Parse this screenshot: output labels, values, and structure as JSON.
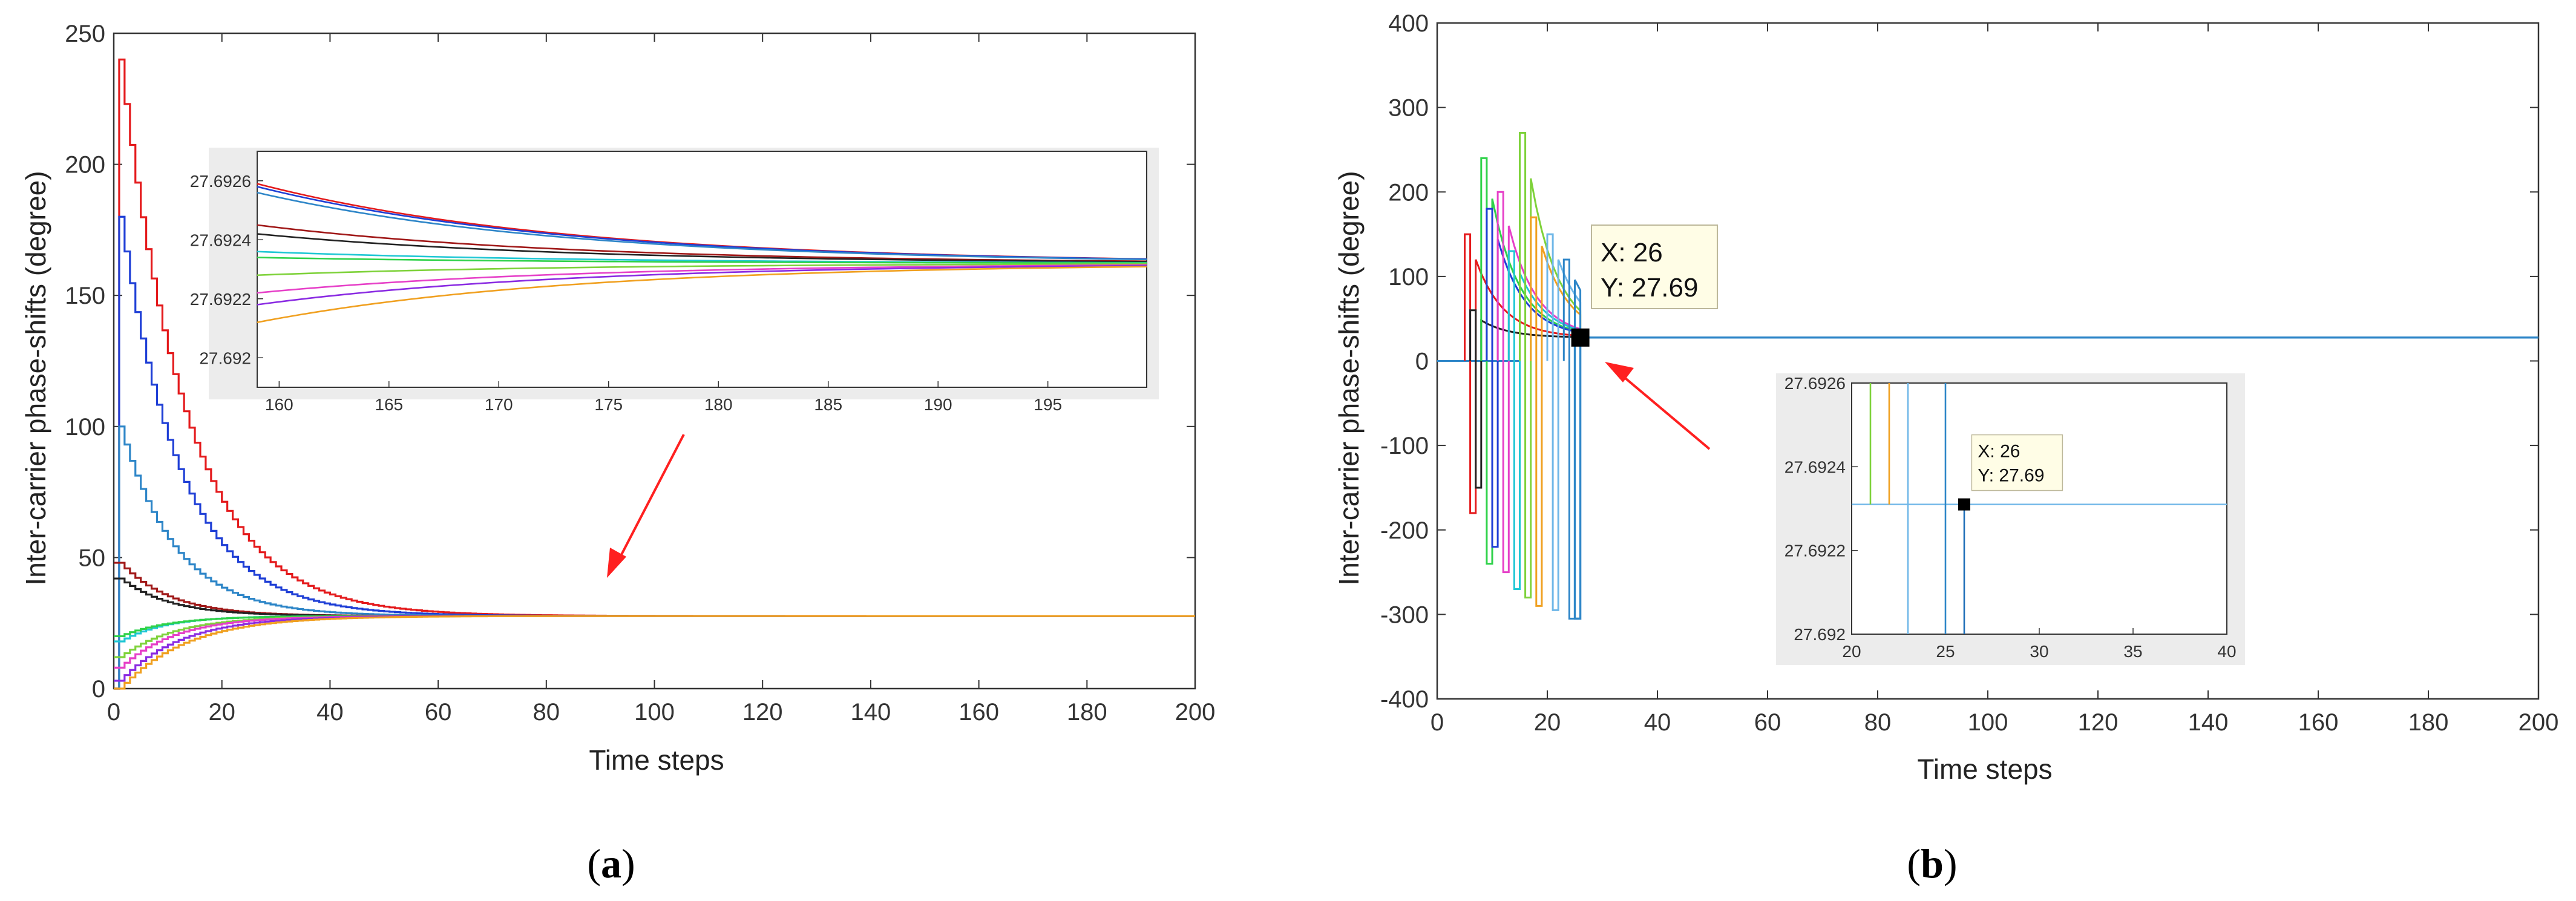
{
  "chart_data": [
    {
      "panel": "a",
      "type": "line",
      "xlabel": "Time steps",
      "ylabel": "Inter-carrier phase-shifts (degree)",
      "xlim": [
        0,
        200
      ],
      "ylim": [
        0,
        250
      ],
      "xticks": [
        0,
        20,
        40,
        60,
        80,
        100,
        120,
        140,
        160,
        180,
        200
      ],
      "yticks": [
        0,
        50,
        100,
        150,
        200,
        250
      ],
      "converged_value": 27.69,
      "series": [
        {
          "name": "red",
          "color": "#e41a1c",
          "start": 240,
          "tau": 12
        },
        {
          "name": "blue",
          "color": "#1f3fd6",
          "start": 180,
          "tau": 11
        },
        {
          "name": "steel-blue",
          "color": "#2e86c8",
          "start": 100,
          "tau": 10
        },
        {
          "name": "dark-red",
          "color": "#a01818",
          "start": 48,
          "tau": 9
        },
        {
          "name": "black",
          "color": "#222222",
          "start": 42,
          "tau": 9
        },
        {
          "name": "cyan",
          "color": "#1fc7d4",
          "start": 18,
          "tau": 8
        },
        {
          "name": "green",
          "color": "#2fd24a",
          "start": 20,
          "tau": 9
        },
        {
          "name": "lime",
          "color": "#7ed23a",
          "start": 12,
          "tau": 10
        },
        {
          "name": "magenta",
          "color": "#e640c8",
          "start": 8,
          "tau": 10
        },
        {
          "name": "purple",
          "color": "#8a2be2",
          "start": 3,
          "tau": 11
        },
        {
          "name": "orange",
          "color": "#f0a020",
          "start": 0,
          "tau": 12
        }
      ],
      "inset": {
        "xlim": [
          159,
          199.5
        ],
        "ylim": [
          27.6919,
          27.6927
        ],
        "xticks": [
          160,
          165,
          170,
          175,
          180,
          185,
          190,
          195
        ],
        "yticks": [
          27.692,
          27.6922,
          27.6924,
          27.6926
        ],
        "ytick_labels": [
          "27.692",
          "27.6922",
          "27.6924",
          "27.6926"
        ],
        "start_values": [
          27.69259,
          27.69258,
          27.69256,
          27.69245,
          27.69242,
          27.69236,
          27.69234,
          27.69228,
          27.69222,
          27.69218,
          27.69212
        ]
      }
    },
    {
      "panel": "b",
      "type": "line",
      "xlabel": "Time steps",
      "ylabel": "Inter-carrier phase-shifts (degree)",
      "xlim": [
        0,
        200
      ],
      "ylim": [
        -400,
        400
      ],
      "xticks": [
        0,
        20,
        40,
        60,
        80,
        100,
        120,
        140,
        160,
        180,
        200
      ],
      "yticks": [
        -400,
        -300,
        -200,
        -100,
        0,
        100,
        200,
        300,
        400
      ],
      "converged_value": 27.69,
      "series": [
        {
          "name": "red",
          "color": "#e41a1c",
          "start": 5,
          "amp": 150,
          "low": -180
        },
        {
          "name": "black",
          "color": "#222222",
          "start": 6,
          "amp": 60,
          "low": -150
        },
        {
          "name": "green",
          "color": "#2fd24a",
          "start": 8,
          "amp": 240,
          "low": -240
        },
        {
          "name": "blue",
          "color": "#1f3fd6",
          "start": 9,
          "amp": 180,
          "low": -220
        },
        {
          "name": "magenta",
          "color": "#e640c8",
          "start": 11,
          "amp": 200,
          "low": -250
        },
        {
          "name": "cyan",
          "color": "#1fc7d4",
          "start": 13,
          "amp": 130,
          "low": -270
        },
        {
          "name": "lime",
          "color": "#7ed23a",
          "start": 15,
          "amp": 270,
          "low": -280
        },
        {
          "name": "orange",
          "color": "#f0a020",
          "start": 17,
          "amp": 170,
          "low": -290
        },
        {
          "name": "light-blue",
          "color": "#6fb7e8",
          "start": 20,
          "amp": 150,
          "low": -295
        },
        {
          "name": "steel-blue",
          "color": "#2e86c8",
          "start": 23,
          "amp": 120,
          "low": -305
        }
      ],
      "datatip": {
        "x_label": "X: 26",
        "y_label": "Y: 27.69",
        "x": 26,
        "y": 27.69
      },
      "inset": {
        "xlim": [
          20,
          40
        ],
        "ylim": [
          27.692,
          27.6926
        ],
        "xticks": [
          20,
          25,
          30,
          35,
          40
        ],
        "yticks": [
          27.692,
          27.6922,
          27.6924,
          27.6926
        ],
        "ytick_labels": [
          "27.692",
          "27.6922",
          "27.6924",
          "27.6926"
        ],
        "drop_lines": [
          {
            "x": 21,
            "color": "#7ed23a"
          },
          {
            "x": 22,
            "color": "#f0a020"
          },
          {
            "x": 23,
            "color": "#6fb7e8"
          },
          {
            "x": 25,
            "color": "#2e86c8"
          },
          {
            "x": 26,
            "color": "#1f6fb8"
          }
        ]
      }
    }
  ],
  "captions": {
    "a_open": "(",
    "a_letter": "a",
    "a_close": ")",
    "b_open": "(",
    "b_letter": "b",
    "b_close": ")"
  },
  "colors": {
    "arrow": "#ff2020",
    "inset_bg": "#ececec",
    "datatip_bg": "#fffde6"
  }
}
